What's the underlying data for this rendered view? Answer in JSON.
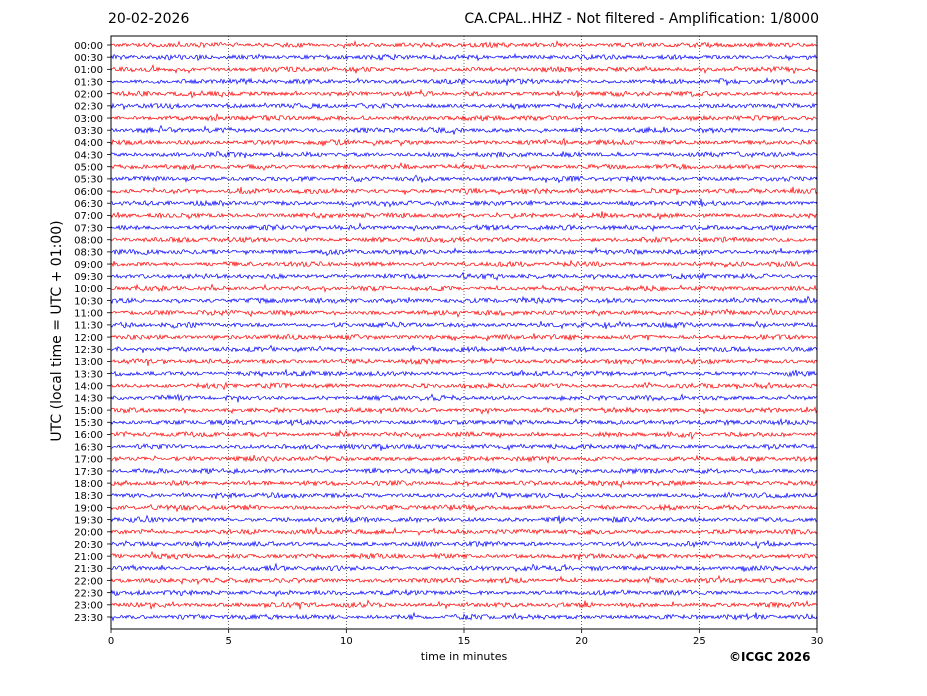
{
  "header": {
    "date": "20-02-2026",
    "station": "CA.CPAL..HHZ - Not filtered - Amplification: 1/8000"
  },
  "footer": {
    "copyright": "©ICGC 2026"
  },
  "colors": {
    "even_rows": "#ff0000",
    "odd_rows": "#0000ff",
    "grid": "#000000"
  },
  "chart_data": {
    "type": "line",
    "title": "CA.CPAL..HHZ - Not filtered - Amplification: 1/8000",
    "xlabel": "time in minutes",
    "ylabel": "UTC (local time = UTC + 01:00)",
    "xlim": [
      0,
      30
    ],
    "x_ticks": [
      0,
      5,
      10,
      15,
      20,
      25,
      30
    ],
    "x_grid": true,
    "row_labels": [
      "00:00",
      "00:30",
      "01:00",
      "01:30",
      "02:00",
      "02:30",
      "03:00",
      "03:30",
      "04:00",
      "04:30",
      "05:00",
      "05:30",
      "06:00",
      "06:30",
      "07:00",
      "07:30",
      "08:00",
      "08:30",
      "09:00",
      "09:30",
      "10:00",
      "10:30",
      "11:00",
      "11:30",
      "12:00",
      "12:30",
      "13:00",
      "13:30",
      "14:00",
      "14:30",
      "15:00",
      "15:30",
      "16:00",
      "16:30",
      "17:00",
      "17:30",
      "18:00",
      "18:30",
      "19:00",
      "19:30",
      "20:00",
      "20:30",
      "21:00",
      "21:30",
      "22:00",
      "22:30",
      "23:00",
      "23:30"
    ],
    "series_colors": [
      "#ff0000",
      "#0000ff"
    ]
  }
}
